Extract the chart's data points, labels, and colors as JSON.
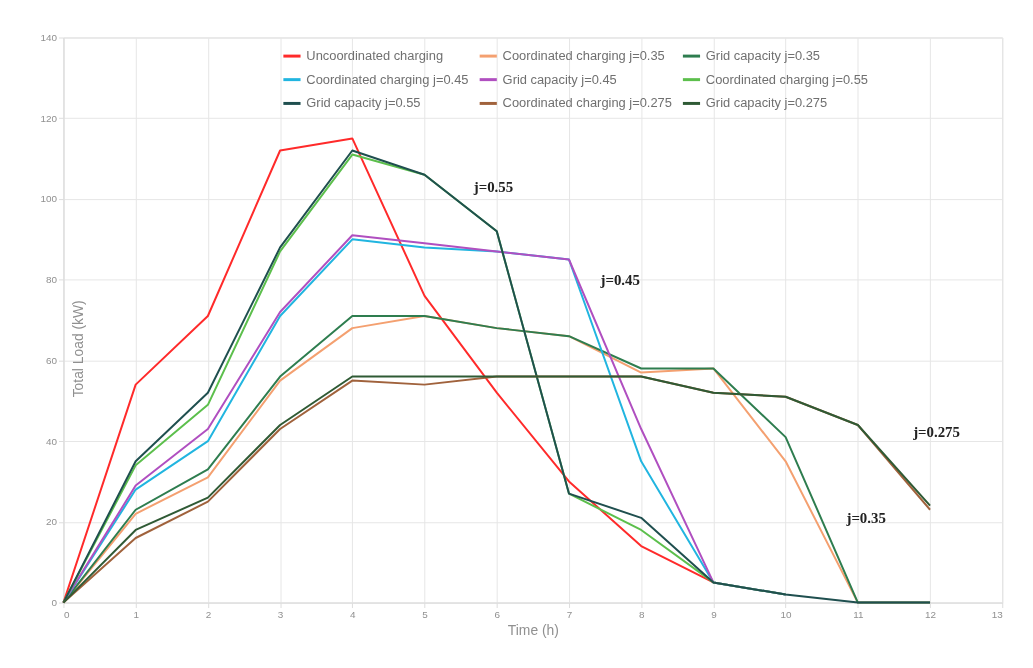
{
  "chart_data": {
    "type": "line",
    "xlabel": "Time (h)",
    "ylabel": "Total Load (kW)",
    "x": [
      0,
      1,
      2,
      3,
      4,
      5,
      6,
      7,
      8,
      9,
      10,
      11,
      12
    ],
    "series": [
      {
        "name": "Uncoordinated  charging",
        "color": "#ff2a2a",
        "values": [
          0,
          54,
          71,
          112,
          115,
          76,
          52,
          30,
          14,
          5,
          null,
          null,
          null
        ]
      },
      {
        "name": "Coordinated charging j=0.35",
        "color": "#f4a070",
        "values": [
          0,
          22,
          31,
          55,
          68,
          71,
          68,
          66,
          57,
          58,
          35,
          0,
          0
        ]
      },
      {
        "name": "Grid capacity j=0.35",
        "color": "#2e7d4f",
        "values": [
          0,
          23,
          33,
          56,
          71,
          71,
          68,
          66,
          58,
          58,
          41,
          0,
          0
        ]
      },
      {
        "name": "Coordinated charging j=0.45",
        "color": "#21b5e0",
        "values": [
          0,
          28,
          40,
          71,
          90,
          88,
          87,
          85,
          35,
          5,
          2,
          null,
          null
        ]
      },
      {
        "name": "Grid capacity j=0.45",
        "color": "#b04fc0",
        "values": [
          0,
          29,
          43,
          72,
          91,
          89,
          87,
          85,
          43,
          5,
          2,
          null,
          null
        ]
      },
      {
        "name": "Coordinated charging j=0.55",
        "color": "#5cbf4c",
        "values": [
          0,
          34,
          49,
          87,
          111,
          106,
          92,
          27,
          18,
          5,
          2,
          null,
          null
        ]
      },
      {
        "name": "Grid capacity j=0.55",
        "color": "#1f4f4f",
        "values": [
          0,
          35,
          52,
          88,
          112,
          106,
          92,
          27,
          21,
          5,
          2,
          0,
          0
        ]
      },
      {
        "name": "Coordinated charging j=0.275",
        "color": "#a0623c",
        "values": [
          0,
          16,
          25,
          43,
          55,
          54,
          56,
          56,
          56,
          52,
          51,
          44,
          23
        ]
      },
      {
        "name": "Grid capacity j=0.275",
        "color": "#2f5a35",
        "values": [
          0,
          18,
          26,
          44,
          56,
          56,
          56,
          56,
          56,
          52,
          51,
          44,
          24
        ]
      }
    ],
    "xlim": [
      0,
      13
    ],
    "xticks": [
      0,
      1,
      2,
      3,
      4,
      5,
      6,
      7,
      8,
      9,
      10,
      11,
      12,
      13
    ],
    "ylim": [
      0,
      140
    ],
    "yticks": [
      0,
      20,
      40,
      60,
      80,
      100,
      120,
      140
    ],
    "grid": true,
    "legend": "top",
    "marker": "none",
    "line_style": "solid",
    "annotations": [
      "j=0.55",
      "j=0.45",
      "j=0.275",
      "j=0.35"
    ]
  }
}
